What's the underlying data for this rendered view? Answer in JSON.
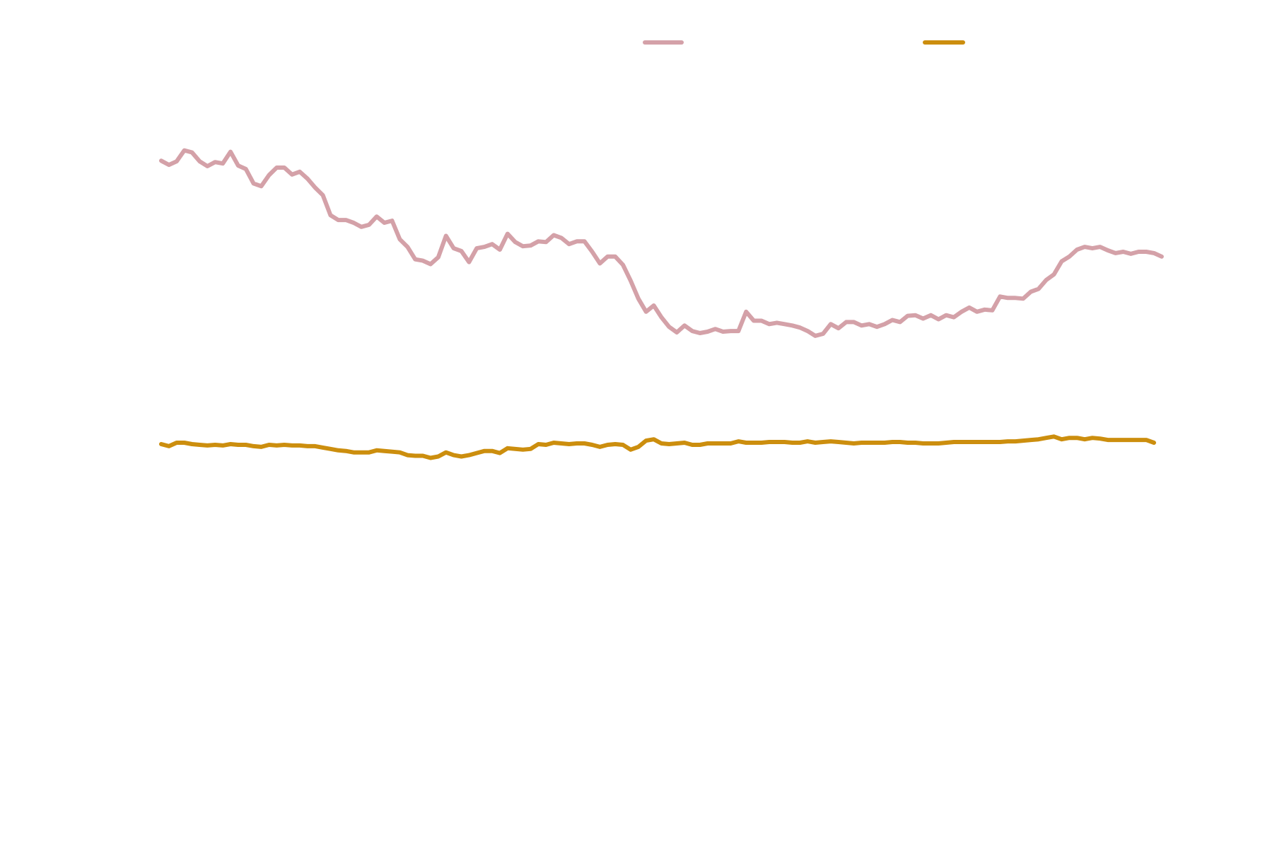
{
  "chart_data": {
    "type": "line",
    "title": "",
    "xlabel": "",
    "ylabel": "",
    "grid": false,
    "legend": "top-right",
    "xlim": [
      0,
      129
    ],
    "ylim": [
      0,
      100
    ],
    "colors": {
      "series_1": "#d4a1a8",
      "series_2": "#cc8e0e"
    },
    "series": [
      {
        "values": [
          89.0,
          88.4,
          88.9,
          90.5,
          90.2,
          88.9,
          88.2,
          88.8,
          88.6,
          90.3,
          88.3,
          87.8,
          85.7,
          85.3,
          86.9,
          88.0,
          88.0,
          87.0,
          87.4,
          86.4,
          85.1,
          84.0,
          81.1,
          80.4,
          80.4,
          80.0,
          79.4,
          79.7,
          80.9,
          80.0,
          80.3,
          77.6,
          76.5,
          74.7,
          74.5,
          74.0,
          75.0,
          78.1,
          76.3,
          75.9,
          74.3,
          76.3,
          76.5,
          76.9,
          76.1,
          78.4,
          77.2,
          76.6,
          76.7,
          77.3,
          77.2,
          78.2,
          77.8,
          76.9,
          77.3,
          77.3,
          75.8,
          74.1,
          75.1,
          75.1,
          73.9,
          71.6,
          69.0,
          67.1,
          68.0,
          66.3,
          64.9,
          64.1,
          65.1,
          64.3,
          64.0,
          64.2,
          64.6,
          64.2,
          64.3,
          64.3,
          67.1,
          65.8,
          65.8,
          65.3,
          65.5,
          65.3,
          65.1,
          64.8,
          64.3,
          63.6,
          63.9,
          65.3,
          64.7,
          65.6,
          65.6,
          65.1,
          65.3,
          64.9,
          65.3,
          65.9,
          65.6,
          66.5,
          66.6,
          66.1,
          66.6,
          66.0,
          66.6,
          66.3,
          67.1,
          67.7,
          67.1,
          67.4,
          67.3,
          69.3,
          69.1,
          69.1,
          69.0,
          70.0,
          70.4,
          71.7,
          72.5,
          74.4,
          75.1,
          76.1,
          76.5,
          76.3,
          76.5,
          76.0,
          75.6,
          75.8,
          75.5,
          75.8,
          75.8,
          75.6,
          75.1
        ]
      },
      {
        "values": [
          47.9,
          47.6,
          48.1,
          48.1,
          47.9,
          47.8,
          47.7,
          47.8,
          47.7,
          47.9,
          47.8,
          47.8,
          47.6,
          47.5,
          47.8,
          47.7,
          47.8,
          47.7,
          47.7,
          47.6,
          47.6,
          47.4,
          47.2,
          47.0,
          46.9,
          46.7,
          46.7,
          46.7,
          47.0,
          46.9,
          46.8,
          46.7,
          46.3,
          46.2,
          46.2,
          45.9,
          46.1,
          46.7,
          46.3,
          46.1,
          46.3,
          46.6,
          46.9,
          46.9,
          46.6,
          47.3,
          47.2,
          47.1,
          47.2,
          47.9,
          47.8,
          48.1,
          48.0,
          47.9,
          48.0,
          48.0,
          47.8,
          47.5,
          47.8,
          47.9,
          47.8,
          47.1,
          47.5,
          48.4,
          48.6,
          48.0,
          47.9,
          48.0,
          48.1,
          47.8,
          47.8,
          48.0,
          48.0,
          48.0,
          48.0,
          48.3,
          48.1,
          48.1,
          48.1,
          48.2,
          48.2,
          48.2,
          48.1,
          48.1,
          48.3,
          48.1,
          48.2,
          48.3,
          48.2,
          48.1,
          48.0,
          48.1,
          48.1,
          48.1,
          48.1,
          48.2,
          48.2,
          48.1,
          48.1,
          48.0,
          48.0,
          48.0,
          48.1,
          48.2,
          48.2,
          48.2,
          48.2,
          48.2,
          48.2,
          48.2,
          48.3,
          48.3,
          48.4,
          48.5,
          48.6,
          48.8,
          49.0,
          48.6,
          48.8,
          48.8,
          48.6,
          48.8,
          48.7,
          48.5,
          48.5,
          48.5,
          48.5,
          48.5,
          48.5,
          48.1
        ]
      }
    ]
  }
}
